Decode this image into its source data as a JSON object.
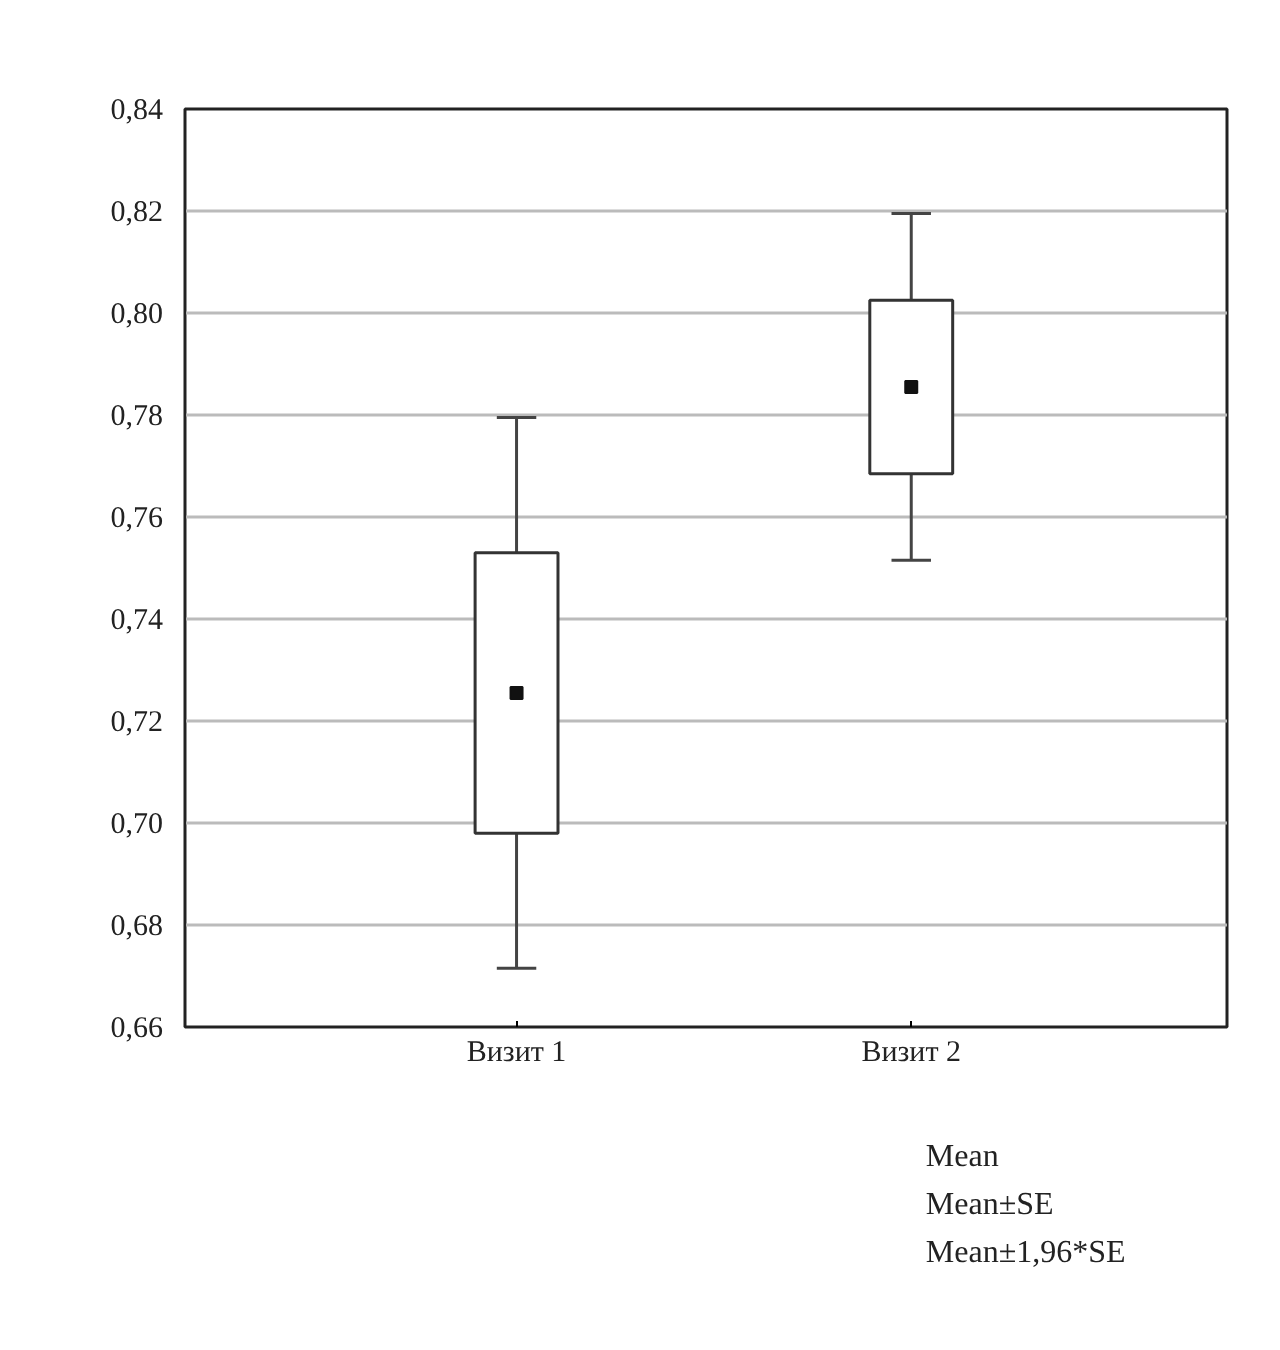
{
  "chart_data": {
    "type": "box",
    "categories": [
      "Визит 1",
      "Визит 2"
    ],
    "boxes": [
      {
        "low": 0.6715,
        "q1": 0.698,
        "median": 0.7255,
        "q3": 0.753,
        "high": 0.7795
      },
      {
        "low": 0.7515,
        "q1": 0.7685,
        "median": 0.7855,
        "q3": 0.8025,
        "high": 0.8195
      }
    ],
    "ylim": [
      0.66,
      0.84
    ],
    "yticks": [
      {
        "value": 0.66,
        "label": "0,66"
      },
      {
        "value": 0.68,
        "label": "0,68"
      },
      {
        "value": 0.7,
        "label": "0,70"
      },
      {
        "value": 0.72,
        "label": "0,72"
      },
      {
        "value": 0.74,
        "label": "0,74"
      },
      {
        "value": 0.76,
        "label": "0,76"
      },
      {
        "value": 0.78,
        "label": "0,78"
      },
      {
        "value": 0.8,
        "label": "0,80"
      },
      {
        "value": 0.82,
        "label": "0,82"
      },
      {
        "value": 0.84,
        "label": "0,84"
      }
    ],
    "grid": "y",
    "annotations": [
      "Mean",
      "Mean±SE",
      "Mean±1,96*SE"
    ]
  }
}
